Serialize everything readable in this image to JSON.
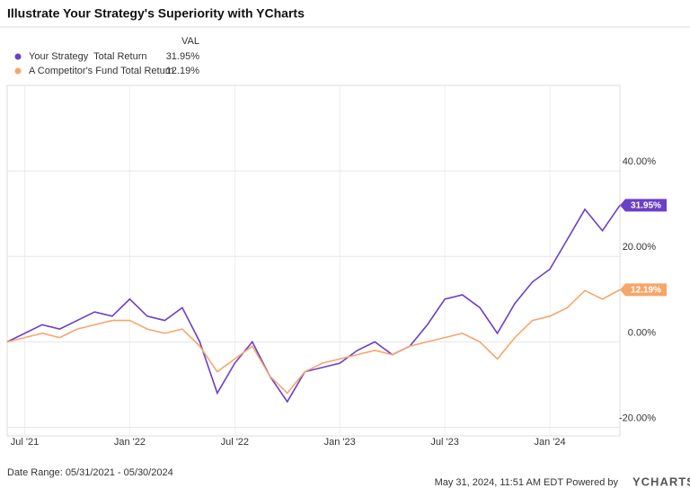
{
  "chart_data": {
    "type": "line",
    "title": "Illustrate Your Strategy's Superiority with YCharts",
    "legend_header": "VAL",
    "x": [
      "2021-06",
      "2021-07",
      "2021-08",
      "2021-09",
      "2021-10",
      "2021-11",
      "2021-12",
      "2022-01",
      "2022-02",
      "2022-03",
      "2022-04",
      "2022-05",
      "2022-06",
      "2022-07",
      "2022-08",
      "2022-09",
      "2022-10",
      "2022-11",
      "2022-12",
      "2023-01",
      "2023-02",
      "2023-03",
      "2023-04",
      "2023-05",
      "2023-06",
      "2023-07",
      "2023-08",
      "2023-09",
      "2023-10",
      "2023-11",
      "2023-12",
      "2024-01",
      "2024-02",
      "2024-03",
      "2024-04",
      "2024-05"
    ],
    "series": [
      {
        "name": "Your Strategy  Total Return",
        "color": "#6b3fc8",
        "last_value_label": "31.95%",
        "values": [
          0,
          2,
          4,
          3,
          5,
          7,
          6,
          10,
          6,
          5,
          8,
          0,
          -12,
          -5,
          0,
          -8,
          -14,
          -7,
          -6,
          -5,
          -2,
          0,
          -3,
          -1,
          4,
          10,
          11,
          8,
          2,
          9,
          14,
          17,
          24,
          31,
          26,
          31.95
        ]
      },
      {
        "name": "A Competitor's Fund Total Return",
        "color": "#f5a66b",
        "last_value_label": "12.19%",
        "values": [
          0,
          1,
          2,
          1,
          3,
          4,
          5,
          5,
          3,
          2,
          3,
          -1,
          -7,
          -4,
          -1,
          -8,
          -12,
          -7,
          -5,
          -4,
          -3,
          -2,
          -3,
          -1,
          0,
          1,
          2,
          0,
          -4,
          1,
          5,
          6,
          8,
          12,
          10,
          12.19
        ]
      }
    ],
    "xlim": [
      "2021-06",
      "2024-05"
    ],
    "xticks": [
      {
        "value": "2021-07",
        "label": "Jul '21"
      },
      {
        "value": "2022-01",
        "label": "Jan '22"
      },
      {
        "value": "2022-07",
        "label": "Jul '22"
      },
      {
        "value": "2023-01",
        "label": "Jan '23"
      },
      {
        "value": "2023-07",
        "label": "Jul '23"
      },
      {
        "value": "2024-01",
        "label": "Jan '24"
      }
    ],
    "ylim": [
      -22,
      60
    ],
    "yticks": [
      {
        "value": 40,
        "label": "40.00%"
      },
      {
        "value": 20,
        "label": "20.00%"
      },
      {
        "value": 0,
        "label": "0.00%"
      },
      {
        "value": -20,
        "label": "-20.00%"
      }
    ],
    "grid": true,
    "date_range": "Date Range: 05/31/2021 - 05/30/2024",
    "timestamp": "May 31, 2024, 11:51 AM EDT Powered by",
    "brand": "YCHARTS"
  }
}
